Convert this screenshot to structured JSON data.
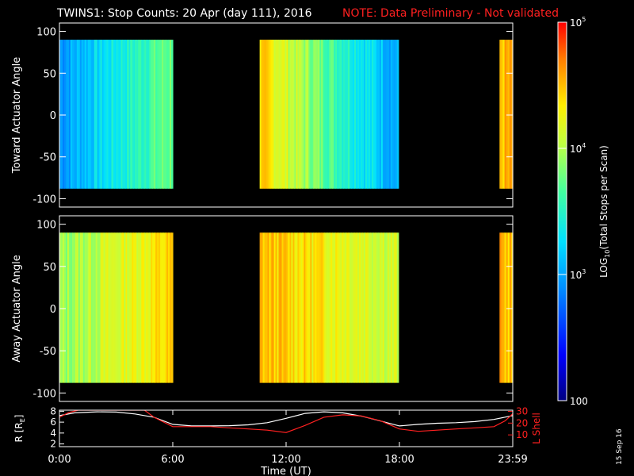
{
  "title": "TWINS1: Stop Counts: 20 Apr (day 111), 2016",
  "note": "NOTE: Data Preliminary - Not validated",
  "date_stamp": "15 Sep 16",
  "colors": {
    "background": "#000000",
    "axes": "#ffffff",
    "note": "#ff2020",
    "lshell": "#ff2020",
    "radius": "#ffffff"
  },
  "chart_data": [
    {
      "type": "heatmap",
      "panel": "top",
      "ylabel": "Toward Actuator Angle",
      "ylim": [
        -110,
        110
      ],
      "yticks": [
        100,
        50,
        0,
        -50,
        -100
      ],
      "xlim": [
        0,
        24
      ],
      "angle_range": [
        -88,
        90
      ],
      "data_intervals": [
        {
          "start": 0.0,
          "end": 6.0,
          "level_start": 2.95,
          "level_end": 3.8
        },
        {
          "start": 10.6,
          "end": 17.95,
          "level_start": 4.4,
          "level_end": 3.0
        },
        {
          "start": 23.3,
          "end": 24.0,
          "level_start": 4.5,
          "level_end": 4.5
        }
      ]
    },
    {
      "type": "heatmap",
      "panel": "middle",
      "ylabel": "Away Actuator Angle",
      "ylim": [
        -110,
        110
      ],
      "yticks": [
        100,
        50,
        0,
        -50,
        -100
      ],
      "xlim": [
        0,
        24
      ],
      "angle_range": [
        -88,
        90
      ],
      "data_intervals": [
        {
          "start": 0.0,
          "end": 6.0,
          "level_start": 3.9,
          "level_end": 4.4
        },
        {
          "start": 10.6,
          "end": 17.95,
          "level_start": 4.5,
          "level_end": 4.1
        },
        {
          "start": 23.3,
          "end": 24.0,
          "level_start": 4.5,
          "level_end": 4.5
        }
      ]
    },
    {
      "type": "line",
      "panel": "bottom",
      "xlabel": "Time (UT)",
      "ylabel_left": "R [R",
      "ylabel_left_sub": "E",
      "ylabel_left_end": "]",
      "ylabel_right": "L Shell",
      "xlim": [
        0,
        24
      ],
      "xtick_labels": [
        {
          "x": 0,
          "label": "0:00"
        },
        {
          "x": 6,
          "label": "6:00"
        },
        {
          "x": 12,
          "label": "12:00"
        },
        {
          "x": 18,
          "label": "18:00"
        },
        {
          "x": 24,
          "label": "23:59"
        }
      ],
      "ylim_left": [
        1.5,
        8.2
      ],
      "yticks_left": [
        2,
        4,
        6,
        8
      ],
      "ylim_right": [
        0,
        31
      ],
      "yticks_right": [
        10,
        20,
        30
      ],
      "series": [
        {
          "axis": "left",
          "x": [
            0,
            0.8,
            2,
            3,
            4,
            5,
            6,
            7,
            8,
            9,
            10,
            11,
            12,
            13,
            14,
            15,
            16,
            17,
            18,
            19,
            20,
            21,
            22,
            23,
            24
          ],
          "y": [
            7.2,
            7.7,
            7.9,
            7.85,
            7.5,
            6.9,
            5.6,
            5.3,
            5.3,
            5.35,
            5.5,
            5.9,
            6.7,
            7.6,
            7.9,
            7.7,
            7.1,
            6.2,
            5.3,
            5.6,
            5.8,
            5.9,
            6.1,
            6.5,
            7.2
          ]
        },
        {
          "axis": "right",
          "x": [
            0,
            0.5,
            1,
            4.5,
            5.0,
            6,
            7,
            8,
            9,
            10,
            11,
            12,
            13,
            14,
            15,
            16,
            17,
            18,
            19,
            20,
            21,
            22,
            23,
            23.6,
            24
          ],
          "y": [
            25,
            29,
            31,
            31,
            25,
            17,
            17,
            17,
            16,
            15,
            14,
            12,
            18,
            25,
            27,
            26,
            22,
            15,
            13,
            14,
            15,
            16,
            17,
            22,
            28
          ]
        }
      ]
    },
    {
      "type": "colorbar",
      "label_main": "LOG",
      "label_sub": "10",
      "label_end": "(Total Stops per Scan)",
      "range_log": [
        2,
        5
      ],
      "tick_labels": [
        {
          "base": "10",
          "exp": "5",
          "log": 5
        },
        {
          "base": "10",
          "exp": "4",
          "log": 4
        },
        {
          "base": "10",
          "exp": "3",
          "log": 3
        },
        {
          "base": "100",
          "exp": "",
          "log": 2
        }
      ]
    }
  ]
}
